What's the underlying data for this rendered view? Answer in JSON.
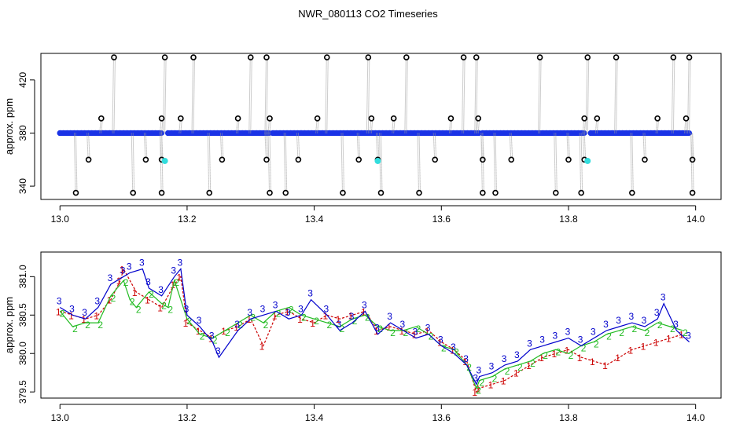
{
  "title": "NWR_080113  CO2 Timeseries",
  "colors": {
    "axis": "#000000",
    "grid_line": "#999999",
    "series_1": "#cc0000",
    "series_2": "#22bb22",
    "series_3": "#0000cc",
    "highlight": "#33dddd",
    "fill_blue": "#1a33e6"
  },
  "chart_data": [
    {
      "type": "scatter",
      "title": "NWR_080113  CO2 Timeseries",
      "ylabel": "approx. ppm",
      "xlabel": "",
      "xlim": [
        12.97,
        14.04
      ],
      "ylim": [
        330,
        440
      ],
      "x_ticks": [
        13.0,
        13.2,
        13.4,
        13.6,
        13.8,
        14.0
      ],
      "x_tick_labels": [
        "13.0",
        "13.2",
        "13.4",
        "13.6",
        "13.8",
        "14.0"
      ],
      "y_ticks": [
        340,
        380,
        420
      ],
      "y_tick_labels": [
        "340",
        "380",
        "420"
      ],
      "baseline_segments": [
        [
          13.0,
          13.16
        ],
        [
          13.17,
          13.33
        ],
        [
          13.335,
          13.66
        ],
        [
          13.665,
          13.825
        ],
        [
          13.835,
          13.99
        ]
      ],
      "baseline_value": 380,
      "spikes_high": [
        13.085,
        13.165,
        13.21,
        13.3,
        13.325,
        13.42,
        13.485,
        13.545,
        13.635,
        13.655,
        13.755,
        13.83,
        13.875,
        13.965,
        13.99
      ],
      "high_value": 437,
      "spikes_low": [
        13.025,
        13.115,
        13.16,
        13.235,
        13.33,
        13.355,
        13.445,
        13.505,
        13.565,
        13.665,
        13.685,
        13.78,
        13.82,
        13.9,
        13.995
      ],
      "low_value": 335,
      "points_mid_high": [
        13.065,
        13.16,
        13.19,
        13.28,
        13.33,
        13.405,
        13.49,
        13.525,
        13.615,
        13.658,
        13.825,
        13.845,
        13.94,
        13.985
      ],
      "mid_high_value": 391,
      "points_mid_low": [
        13.045,
        13.135,
        13.16,
        13.255,
        13.325,
        13.375,
        13.47,
        13.5,
        13.59,
        13.665,
        13.71,
        13.8,
        13.825,
        13.92,
        13.995
      ],
      "mid_low_value": 360,
      "highlight_points": [
        [
          13.165,
          359
        ],
        [
          13.5,
          359
        ],
        [
          13.83,
          359
        ]
      ],
      "grid": false
    },
    {
      "type": "line",
      "title": "",
      "ylabel": "approx. ppm",
      "xlabel": "",
      "xlim": [
        12.97,
        14.04
      ],
      "ylim": [
        379.42,
        381.32
      ],
      "x_ticks": [
        13.0,
        13.2,
        13.4,
        13.6,
        13.8,
        14.0
      ],
      "x_tick_labels": [
        "13.0",
        "13.2",
        "13.4",
        "13.6",
        "13.8",
        "14.0"
      ],
      "y_ticks": [
        379.5,
        380.0,
        380.5,
        381.0
      ],
      "y_tick_labels": [
        "379.5",
        "380.0",
        "380.5",
        "381.0"
      ],
      "grid": false,
      "series": [
        {
          "marker": "1",
          "x": [
            13.0,
            13.02,
            13.04,
            13.06,
            13.08,
            13.095,
            13.1,
            13.12,
            13.14,
            13.16,
            13.18,
            13.19,
            13.2,
            13.22,
            13.24,
            13.26,
            13.28,
            13.3,
            13.32,
            13.34,
            13.36,
            13.38,
            13.4,
            13.42,
            13.44,
            13.46,
            13.48,
            13.5,
            13.52,
            13.54,
            13.56,
            13.58,
            13.6,
            13.62,
            13.64,
            13.655,
            13.66,
            13.68,
            13.7,
            13.72,
            13.74,
            13.76,
            13.78,
            13.8,
            13.82,
            13.84,
            13.86,
            13.88,
            13.9,
            13.92,
            13.94,
            13.96,
            13.98
          ],
          "y": [
            380.55,
            380.5,
            380.45,
            380.5,
            380.7,
            380.95,
            381.1,
            380.8,
            380.7,
            380.6,
            380.9,
            381.0,
            380.4,
            380.3,
            380.2,
            380.3,
            380.35,
            380.45,
            380.1,
            380.5,
            380.55,
            380.45,
            380.4,
            380.5,
            380.45,
            380.5,
            380.55,
            380.3,
            380.35,
            380.3,
            380.25,
            380.3,
            380.15,
            380.05,
            379.9,
            379.5,
            379.55,
            379.6,
            379.65,
            379.75,
            379.85,
            379.95,
            380.0,
            380.05,
            379.95,
            379.9,
            379.85,
            379.95,
            380.05,
            380.1,
            380.15,
            380.2,
            380.25
          ]
        },
        {
          "marker": "2",
          "x": [
            13.0,
            13.02,
            13.04,
            13.06,
            13.08,
            13.1,
            13.11,
            13.12,
            13.14,
            13.16,
            13.17,
            13.18,
            13.2,
            13.22,
            13.24,
            13.26,
            13.28,
            13.3,
            13.32,
            13.34,
            13.36,
            13.38,
            13.4,
            13.42,
            13.44,
            13.46,
            13.48,
            13.5,
            13.52,
            13.54,
            13.56,
            13.58,
            13.6,
            13.62,
            13.64,
            13.655,
            13.66,
            13.68,
            13.7,
            13.72,
            13.74,
            13.76,
            13.78,
            13.8,
            13.82,
            13.84,
            13.86,
            13.88,
            13.9,
            13.92,
            13.94,
            13.96,
            13.98
          ],
          "y": [
            380.55,
            380.35,
            380.4,
            380.4,
            380.75,
            380.95,
            380.7,
            380.6,
            380.8,
            380.65,
            380.6,
            380.95,
            380.45,
            380.25,
            380.2,
            380.3,
            380.4,
            380.5,
            380.4,
            380.55,
            380.6,
            380.5,
            380.45,
            380.4,
            380.35,
            380.45,
            380.5,
            380.35,
            380.3,
            380.3,
            380.35,
            380.25,
            380.1,
            380.05,
            379.85,
            379.55,
            379.65,
            379.7,
            379.8,
            379.85,
            379.9,
            380.0,
            380.05,
            380.0,
            380.1,
            380.15,
            380.25,
            380.3,
            380.35,
            380.3,
            380.4,
            380.35,
            380.3
          ]
        },
        {
          "marker": "3",
          "x": [
            13.0,
            13.02,
            13.04,
            13.06,
            13.08,
            13.1,
            13.11,
            13.13,
            13.14,
            13.16,
            13.18,
            13.19,
            13.2,
            13.22,
            13.24,
            13.25,
            13.28,
            13.3,
            13.32,
            13.34,
            13.36,
            13.38,
            13.395,
            13.42,
            13.44,
            13.46,
            13.48,
            13.5,
            13.52,
            13.54,
            13.56,
            13.58,
            13.6,
            13.62,
            13.64,
            13.655,
            13.66,
            13.68,
            13.7,
            13.72,
            13.74,
            13.76,
            13.78,
            13.8,
            13.82,
            13.84,
            13.86,
            13.88,
            13.9,
            13.92,
            13.94,
            13.95,
            13.97,
            13.99
          ],
          "y": [
            380.6,
            380.5,
            380.45,
            380.6,
            380.9,
            381.0,
            381.05,
            381.1,
            380.85,
            380.75,
            381.0,
            381.1,
            380.5,
            380.35,
            380.15,
            379.95,
            380.3,
            380.45,
            380.5,
            380.55,
            380.45,
            380.5,
            380.7,
            380.5,
            380.3,
            380.4,
            380.55,
            380.25,
            380.4,
            380.3,
            380.2,
            380.25,
            380.1,
            380.0,
            379.85,
            379.6,
            379.7,
            379.75,
            379.85,
            379.9,
            380.05,
            380.1,
            380.15,
            380.2,
            380.1,
            380.2,
            380.3,
            380.35,
            380.4,
            380.35,
            380.45,
            380.65,
            380.3,
            380.15
          ]
        }
      ]
    }
  ]
}
